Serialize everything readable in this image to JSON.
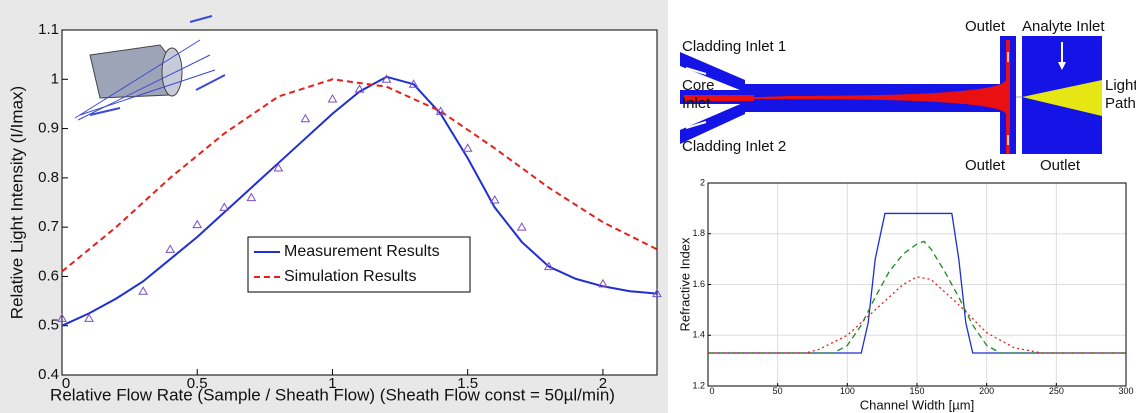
{
  "chart_data": [
    {
      "type": "line",
      "xlabel": "Relative Flow Rate (Sample / Sheath Flow) (Sheath Flow const = 50µl/min)",
      "ylabel": "Relative Light Intensity (I/Imax)",
      "xlim": [
        0,
        2.2
      ],
      "ylim": [
        0.4,
        1.1
      ],
      "xticks": [
        0,
        0.5,
        1,
        1.5,
        2
      ],
      "yticks": [
        0.4,
        0.5,
        0.6,
        0.7,
        0.8,
        0.9,
        1,
        1.1
      ],
      "grid": false,
      "series": [
        {
          "name": "Measurement Results",
          "color": "#1f2fd0",
          "style": "solid",
          "x": [
            0,
            0.1,
            0.2,
            0.3,
            0.4,
            0.5,
            0.6,
            0.7,
            0.8,
            0.9,
            1.0,
            1.1,
            1.2,
            1.3,
            1.4,
            1.5,
            1.6,
            1.7,
            1.8,
            1.9,
            2.0,
            2.1,
            2.2
          ],
          "values": [
            0.5,
            0.525,
            0.555,
            0.59,
            0.635,
            0.68,
            0.73,
            0.78,
            0.83,
            0.88,
            0.93,
            0.975,
            1.005,
            0.99,
            0.93,
            0.84,
            0.74,
            0.67,
            0.62,
            0.595,
            0.58,
            0.57,
            0.565
          ]
        },
        {
          "name": "Simulation Results",
          "color": "#e8201c",
          "style": "dashed",
          "x": [
            0,
            0.2,
            0.4,
            0.6,
            0.8,
            1.0,
            1.2,
            1.4,
            1.6,
            1.8,
            2.0,
            2.2
          ],
          "values": [
            0.61,
            0.7,
            0.8,
            0.89,
            0.965,
            1.0,
            0.985,
            0.935,
            0.86,
            0.78,
            0.71,
            0.655
          ]
        }
      ],
      "points": {
        "color": "#7a4fc0",
        "marker": "triangle",
        "x": [
          0,
          0.1,
          0.3,
          0.4,
          0.5,
          0.6,
          0.7,
          0.8,
          0.9,
          1.0,
          1.1,
          1.2,
          1.3,
          1.4,
          1.5,
          1.6,
          1.7,
          1.8,
          2.0,
          2.2
        ],
        "values": [
          0.515,
          0.515,
          0.57,
          0.655,
          0.705,
          0.74,
          0.76,
          0.82,
          0.92,
          0.96,
          0.98,
          1.0,
          0.99,
          0.935,
          0.86,
          0.755,
          0.7,
          0.62,
          0.585,
          0.565
        ]
      }
    },
    {
      "type": "line",
      "xlabel": "Channel Width [µm]",
      "ylabel": "Refractive Index",
      "xlim": [
        0,
        300
      ],
      "ylim": [
        1.2,
        2
      ],
      "xticks": [
        0,
        50,
        100,
        150,
        200,
        250,
        300
      ],
      "yticks": [
        1.2,
        1.4,
        1.6,
        1.8,
        2
      ],
      "grid": true,
      "series": [
        {
          "color": "#1f2fd0",
          "style": "solid",
          "x": [
            0,
            110,
            115,
            120,
            127,
            175,
            180,
            185,
            190,
            300
          ],
          "values": [
            1.33,
            1.33,
            1.45,
            1.7,
            1.88,
            1.88,
            1.7,
            1.45,
            1.33,
            1.33
          ]
        },
        {
          "color": "#1e8a1e",
          "style": "dashed",
          "x": [
            0,
            90,
            100,
            110,
            120,
            130,
            140,
            150,
            155,
            160,
            170,
            180,
            190,
            200,
            210,
            300
          ],
          "values": [
            1.33,
            1.33,
            1.36,
            1.44,
            1.55,
            1.65,
            1.72,
            1.76,
            1.77,
            1.74,
            1.65,
            1.55,
            1.44,
            1.36,
            1.33,
            1.33
          ]
        },
        {
          "color": "#e8201c",
          "style": "dotted",
          "x": [
            0,
            70,
            80,
            100,
            120,
            140,
            150,
            160,
            180,
            200,
            220,
            240,
            300
          ],
          "values": [
            1.33,
            1.33,
            1.345,
            1.4,
            1.5,
            1.6,
            1.63,
            1.62,
            1.52,
            1.41,
            1.35,
            1.33,
            1.33
          ]
        }
      ]
    }
  ],
  "diagram": {
    "labels": [
      "Cladding Inlet 1",
      "Core",
      "Inlet",
      "Cladding Inlet 2",
      "Outlet",
      "Analyte Inlet",
      "Light",
      "Path",
      "Outlet",
      "Outlet"
    ]
  }
}
